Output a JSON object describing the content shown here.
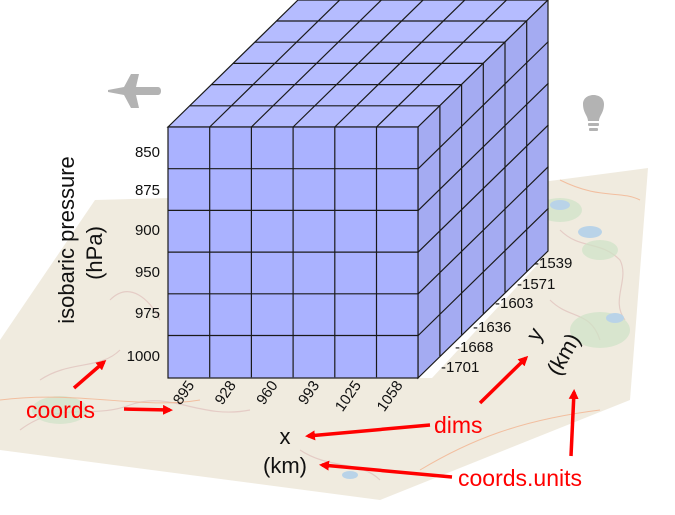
{
  "diagram": {
    "pressure": {
      "label_line1": "isobaric pressure",
      "label_line2": "(hPa)",
      "ticks": [
        "850",
        "875",
        "900",
        "950",
        "975",
        "1000"
      ]
    },
    "x": {
      "name": "x",
      "unit": "(km)",
      "ticks": [
        "895",
        "928",
        "960",
        "993",
        "1025",
        "1058"
      ]
    },
    "y": {
      "name": "y",
      "unit": "(km)",
      "ticks": [
        "-1701",
        "-1668",
        "-1636",
        "-1603",
        "-1571",
        "-1539"
      ]
    },
    "annotations": {
      "coords": "coords",
      "dims": "dims",
      "coords_units": "coords.units"
    },
    "icons": {
      "top_left": "airplane-icon",
      "top_right": "lightbulb-icon"
    },
    "colors": {
      "cube_face": "#aab2ff",
      "cube_top": "#b5bcff",
      "cube_side": "#a4abf2",
      "grid_line": "#1a1a1a",
      "annotation": "#ff0000",
      "map_land": "#f0ebdf",
      "map_water": "#b9d3e8",
      "icon_gray": "#b3b3b3"
    }
  }
}
